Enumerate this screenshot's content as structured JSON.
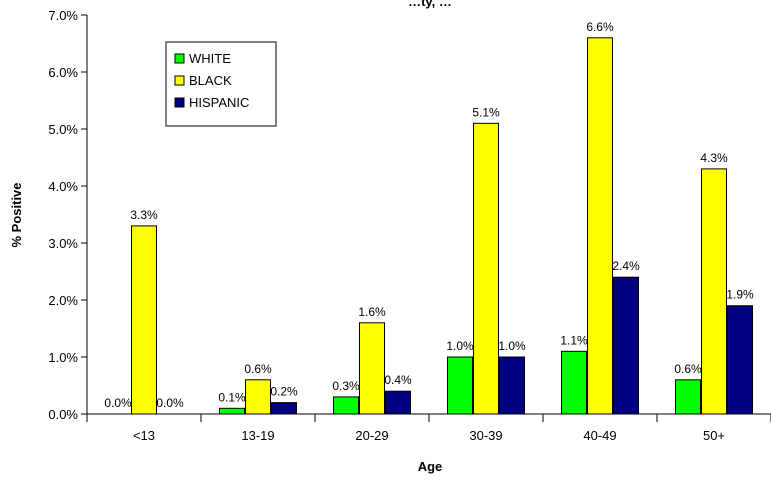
{
  "chart_data": {
    "type": "bar",
    "title": "…ty, …",
    "xlabel": "Age",
    "ylabel": "% Positive",
    "categories": [
      "<13",
      "13-19",
      "20-29",
      "30-39",
      "40-49",
      "50+"
    ],
    "ylim": [
      0,
      7
    ],
    "yticks": [
      0,
      1,
      2,
      3,
      4,
      5,
      6,
      7
    ],
    "ytick_labels": [
      "0.0%",
      "1.0%",
      "2.0%",
      "3.0%",
      "4.0%",
      "5.0%",
      "6.0%",
      "7.0%"
    ],
    "grid": false,
    "legend_position": "top-left",
    "series": [
      {
        "name": "WHITE",
        "color": "#00ff00",
        "values": [
          0.0,
          0.1,
          0.3,
          1.0,
          1.1,
          0.6
        ],
        "labels": [
          "0.0%",
          "0.1%",
          "0.3%",
          "1.0%",
          "1.1%",
          "0.6%"
        ]
      },
      {
        "name": "BLACK",
        "color": "#ffff00",
        "values": [
          3.3,
          0.6,
          1.6,
          5.1,
          6.6,
          4.3
        ],
        "labels": [
          "3.3%",
          "0.6%",
          "1.6%",
          "5.1%",
          "6.6%",
          "4.3%"
        ]
      },
      {
        "name": "HISPANIC",
        "color": "#000080",
        "values": [
          0.0,
          0.2,
          0.4,
          1.0,
          2.4,
          1.9
        ],
        "labels": [
          "0.0%",
          "0.2%",
          "0.4%",
          "1.0%",
          "2.4%",
          "1.9%"
        ]
      }
    ]
  }
}
